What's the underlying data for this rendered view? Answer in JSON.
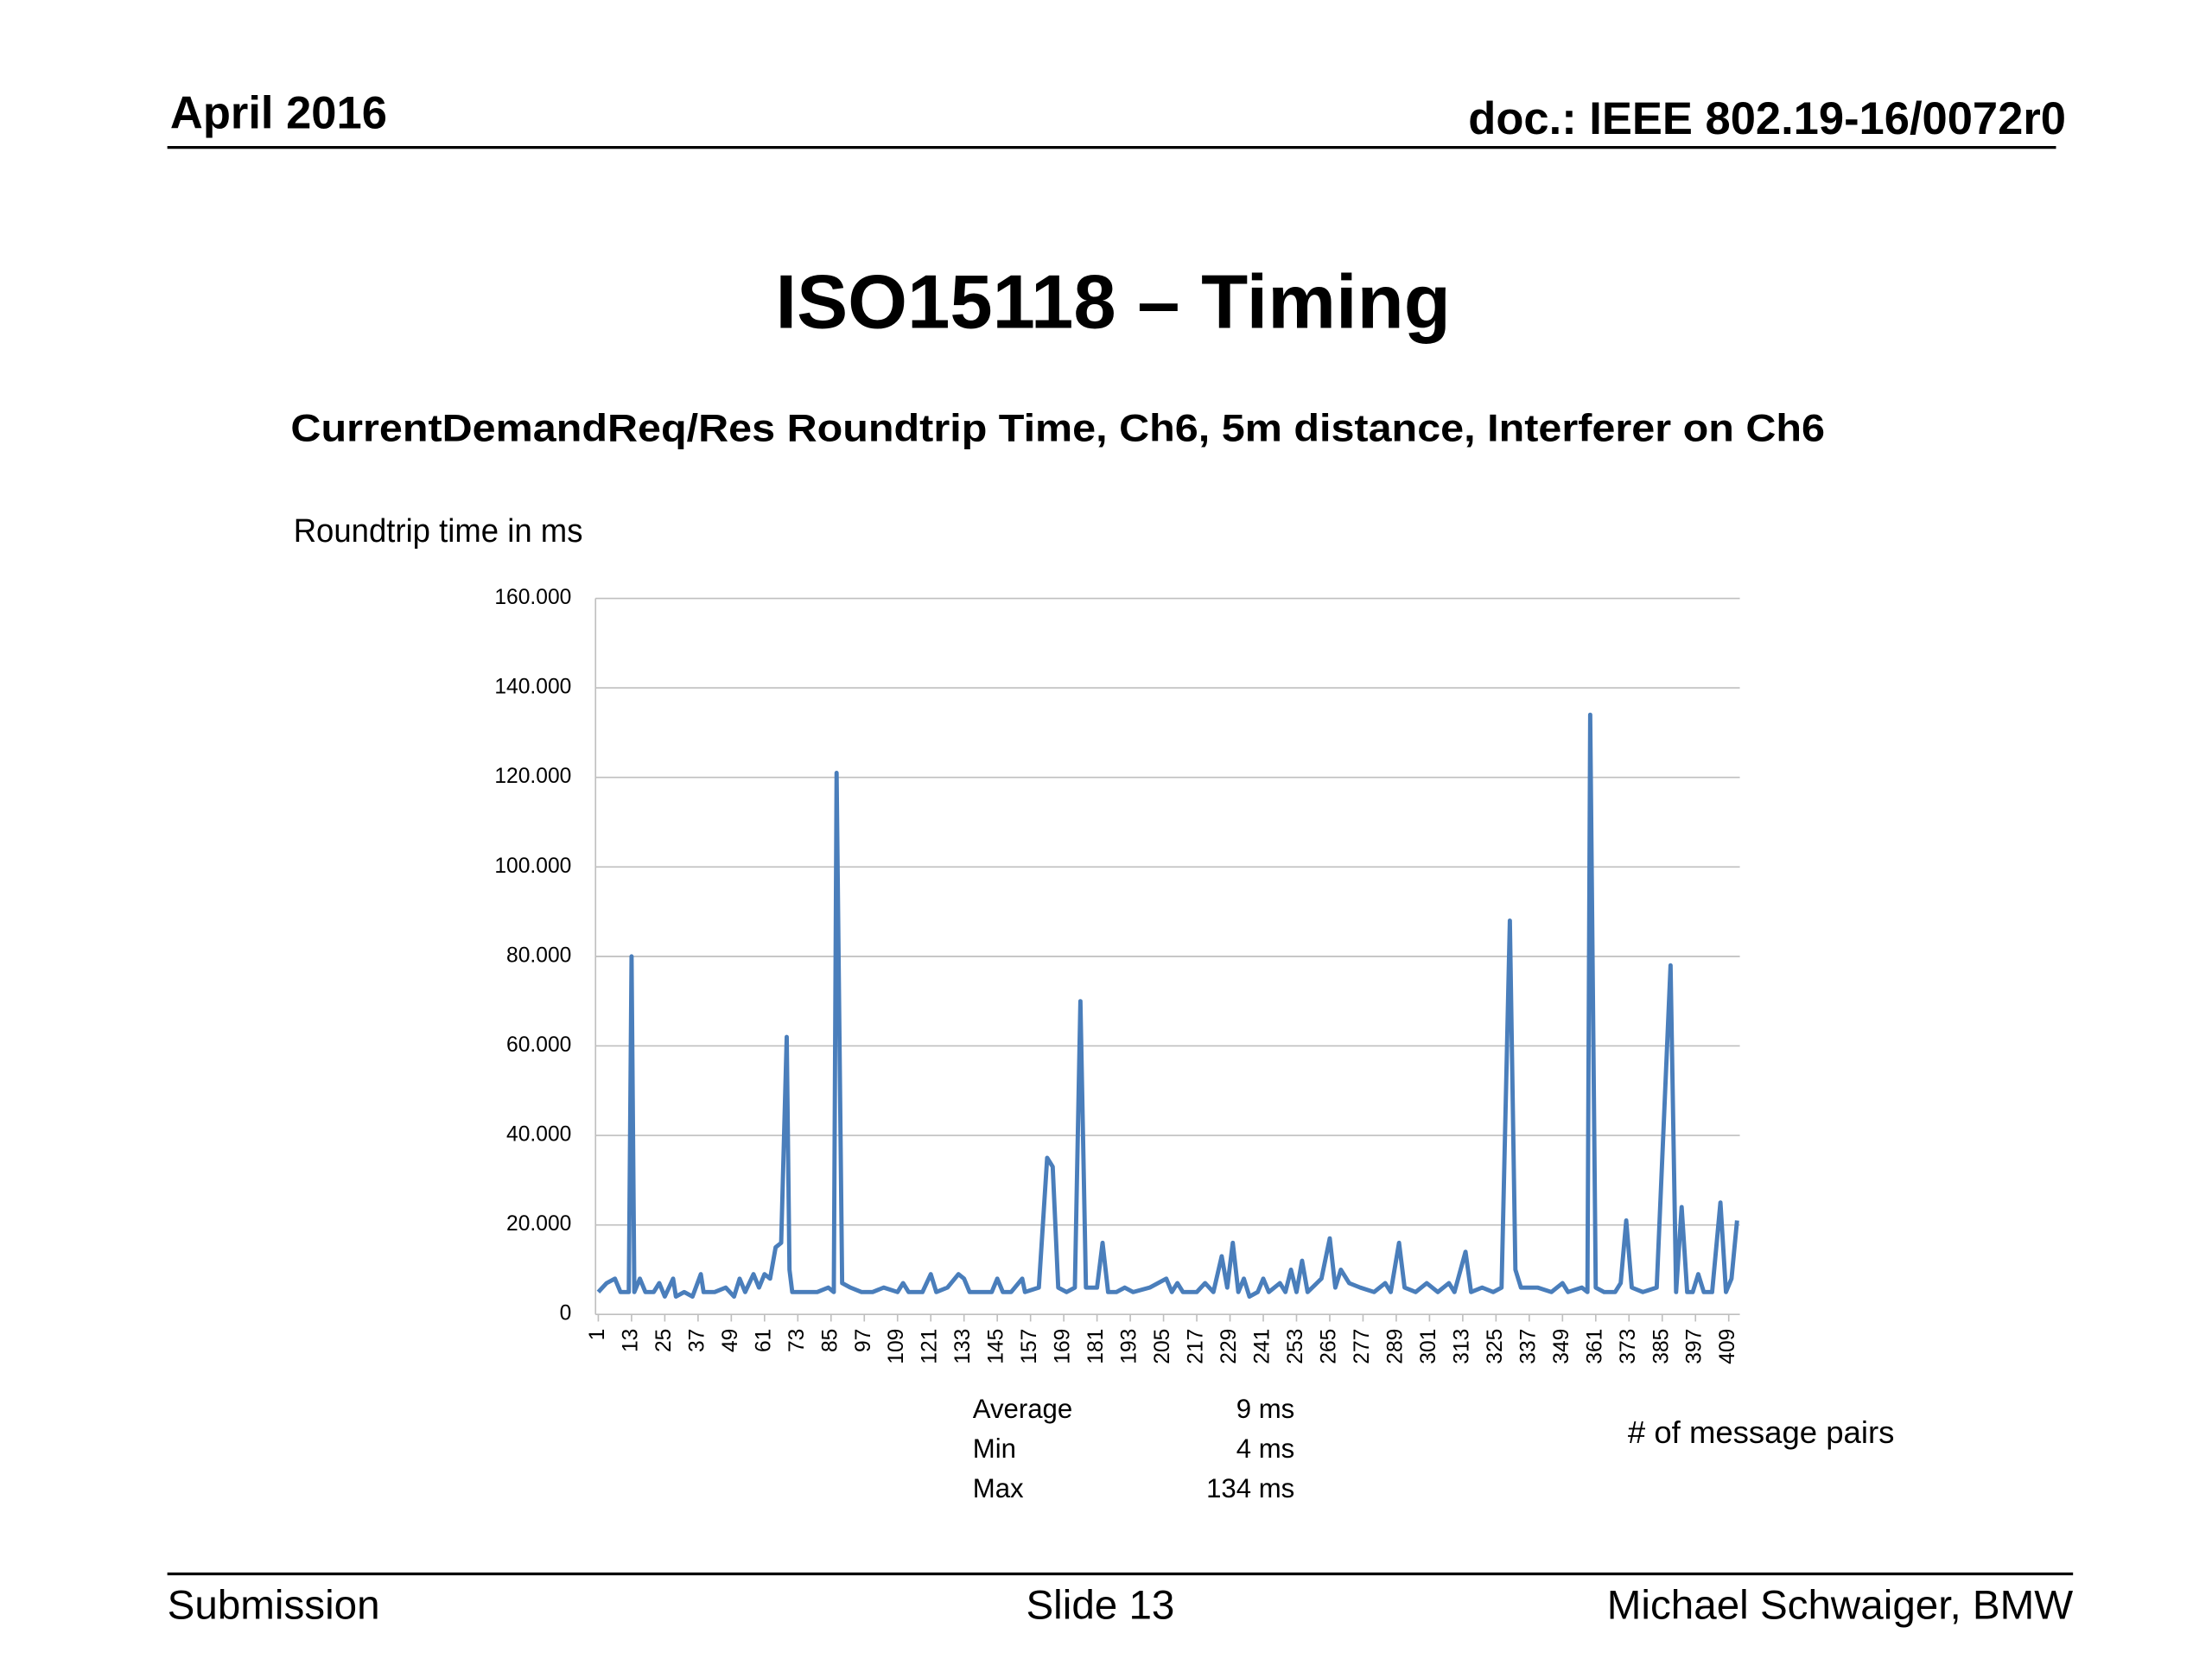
{
  "header": {
    "date": "April 2016",
    "doc": "doc.: IEEE 802.19-16/0072r0"
  },
  "title": "ISO15118 – Timing",
  "subtitle": "CurrentDemandReq/Res Roundtrip Time, Ch6, 5m distance, Interferer on Ch6",
  "stats": [
    [
      "Average",
      "9 ms"
    ],
    [
      "Min",
      "4 ms"
    ],
    [
      "Max",
      "134 ms"
    ]
  ],
  "footer": {
    "left": "Submission",
    "center": "Slide 13",
    "right": "Michael Schwaiger, BMW"
  },
  "chart_data": {
    "type": "line",
    "y_label": "Roundtrip time in ms",
    "x_label": "# of message pairs",
    "x": [
      1,
      4,
      7,
      9,
      12,
      13,
      14,
      16,
      18,
      21,
      23,
      25,
      28,
      29,
      32,
      35,
      38,
      39,
      43,
      47,
      50,
      52,
      54,
      57,
      59,
      61,
      63,
      65,
      67,
      69,
      70,
      71,
      75,
      80,
      84,
      86,
      87,
      89,
      92,
      96,
      100,
      104,
      109,
      111,
      113,
      118,
      121,
      123,
      127,
      131,
      133,
      135,
      143,
      145,
      147,
      150,
      154,
      155,
      160,
      163,
      165,
      167,
      170,
      173,
      175,
      177,
      181,
      183,
      185,
      188,
      191,
      194,
      200,
      206,
      208,
      210,
      212,
      217,
      220,
      223,
      226,
      228,
      230,
      232,
      234,
      236,
      239,
      241,
      243,
      247,
      249,
      251,
      253,
      255,
      257,
      262,
      265,
      267,
      269,
      272,
      276,
      281,
      285,
      287,
      290,
      292,
      296,
      300,
      304,
      308,
      310,
      314,
      316,
      320,
      324,
      327,
      330,
      332,
      334,
      340,
      345,
      349,
      351,
      356,
      358,
      359,
      361,
      364,
      368,
      370,
      372,
      374,
      378,
      383,
      388,
      390,
      392,
      394,
      396,
      398,
      400,
      403,
      406,
      408,
      410,
      412
    ],
    "series": [
      {
        "color": "#4a7ebb",
        "values": [
          5,
          7,
          8,
          5,
          5,
          80,
          5,
          8,
          5,
          5,
          7,
          4,
          8,
          4,
          5,
          4,
          9,
          5,
          5,
          6,
          4,
          8,
          5,
          9,
          6,
          9,
          8,
          15,
          16,
          62,
          10,
          5,
          5,
          5,
          6,
          5,
          121,
          7,
          6,
          5,
          5,
          6,
          5,
          7,
          5,
          5,
          9,
          5,
          6,
          9,
          8,
          5,
          5,
          8,
          5,
          5,
          8,
          5,
          6,
          35,
          33,
          6,
          5,
          6,
          70,
          6,
          6,
          16,
          5,
          5,
          6,
          5,
          6,
          8,
          5,
          7,
          5,
          5,
          7,
          5,
          13,
          6,
          16,
          5,
          8,
          4,
          5,
          8,
          5,
          7,
          5,
          10,
          5,
          12,
          5,
          8,
          17,
          6,
          10,
          7,
          6,
          5,
          7,
          5,
          16,
          6,
          5,
          7,
          5,
          7,
          5,
          14,
          5,
          6,
          5,
          6,
          88,
          10,
          6,
          6,
          5,
          7,
          5,
          6,
          5,
          134,
          6,
          5,
          5,
          7,
          21,
          6,
          5,
          6,
          78,
          5,
          24,
          5,
          5,
          9,
          5,
          5,
          25,
          5,
          8,
          21
        ]
      }
    ],
    "xlim": [
      0,
      413
    ],
    "xticks": [
      1,
      13,
      25,
      37,
      49,
      61,
      73,
      85,
      97,
      109,
      121,
      133,
      145,
      157,
      169,
      181,
      193,
      205,
      217,
      229,
      241,
      253,
      265,
      277,
      289,
      301,
      313,
      325,
      337,
      349,
      361,
      373,
      385,
      397,
      409
    ],
    "ylim": [
      0,
      160
    ],
    "yticks": [
      0,
      {
        "value": 20,
        "label": "20.000"
      },
      {
        "value": 40,
        "label": "40.000"
      },
      {
        "value": 60,
        "label": "60.000"
      },
      {
        "value": 80,
        "label": "80.000"
      },
      {
        "value": 100,
        "label": "100.000"
      },
      {
        "value": 120,
        "label": "120.000"
      },
      {
        "value": 140,
        "label": "140.000"
      },
      {
        "value": 160,
        "label": "160.000"
      }
    ],
    "grid": true
  }
}
